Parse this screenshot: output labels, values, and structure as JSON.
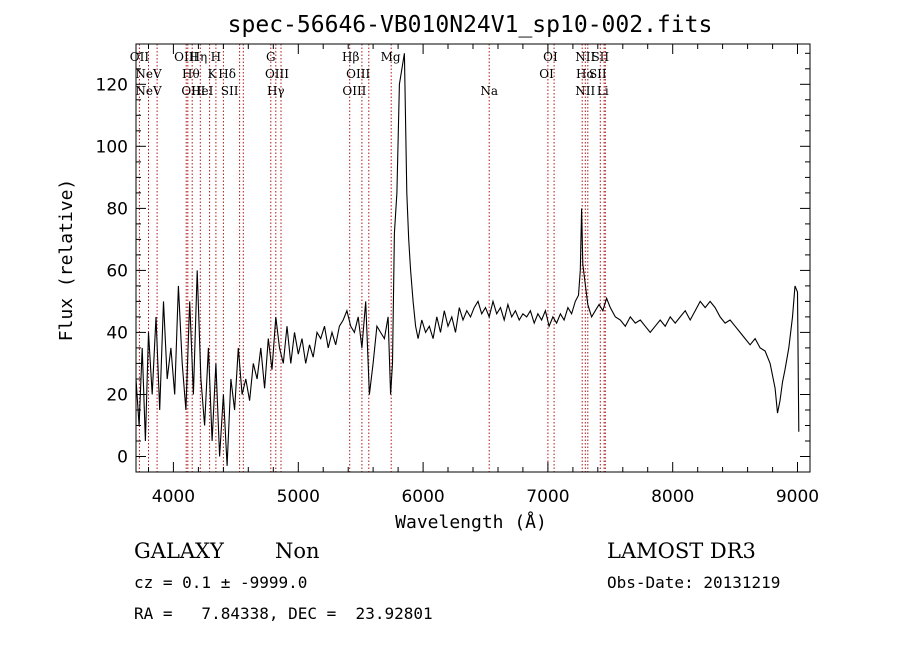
{
  "chart_data": {
    "type": "line",
    "title": "spec-56646-VB010N24V1_sp10-002.fits",
    "xlabel": "Wavelength (Å)",
    "ylabel": "Flux (relative)",
    "xlim": [
      3700,
      9100
    ],
    "ylim": [
      -5,
      133
    ],
    "xticks": [
      4000,
      5000,
      6000,
      7000,
      8000,
      9000
    ],
    "yticks": [
      0,
      20,
      40,
      60,
      80,
      100,
      120
    ],
    "grid": false,
    "series": [
      {
        "name": "spectrum",
        "x": [
          3700,
          3725,
          3750,
          3775,
          3800,
          3830,
          3860,
          3890,
          3920,
          3950,
          3980,
          4010,
          4040,
          4070,
          4100,
          4130,
          4160,
          4190,
          4220,
          4250,
          4280,
          4310,
          4340,
          4370,
          4400,
          4430,
          4460,
          4490,
          4520,
          4550,
          4580,
          4610,
          4640,
          4670,
          4700,
          4730,
          4760,
          4790,
          4820,
          4850,
          4880,
          4910,
          4940,
          4970,
          5000,
          5030,
          5060,
          5090,
          5120,
          5150,
          5180,
          5210,
          5240,
          5270,
          5300,
          5330,
          5360,
          5390,
          5420,
          5450,
          5480,
          5510,
          5540,
          5570,
          5600,
          5630,
          5660,
          5690,
          5720,
          5740,
          5755,
          5770,
          5790,
          5810,
          5830,
          5850,
          5870,
          5885,
          5900,
          5920,
          5940,
          5960,
          5990,
          6020,
          6050,
          6080,
          6110,
          6140,
          6170,
          6200,
          6230,
          6260,
          6290,
          6320,
          6350,
          6380,
          6410,
          6440,
          6470,
          6500,
          6530,
          6560,
          6590,
          6620,
          6650,
          6680,
          6710,
          6740,
          6770,
          6800,
          6830,
          6860,
          6890,
          6920,
          6950,
          6980,
          7010,
          7040,
          7070,
          7100,
          7130,
          7160,
          7190,
          7220,
          7245,
          7260,
          7270,
          7280,
          7295,
          7320,
          7350,
          7380,
          7410,
          7440,
          7470,
          7500,
          7540,
          7580,
          7620,
          7660,
          7700,
          7740,
          7780,
          7820,
          7860,
          7900,
          7940,
          7980,
          8020,
          8060,
          8100,
          8140,
          8180,
          8220,
          8260,
          8300,
          8340,
          8380,
          8420,
          8460,
          8500,
          8540,
          8580,
          8620,
          8660,
          8700,
          8740,
          8780,
          8820,
          8840,
          8860,
          8880,
          8900,
          8930,
          8960,
          8980,
          9000,
          9010
        ],
        "y": [
          25,
          10,
          35,
          5,
          40,
          20,
          45,
          15,
          50,
          25,
          35,
          20,
          55,
          30,
          15,
          50,
          20,
          60,
          25,
          10,
          35,
          5,
          30,
          0,
          20,
          -3,
          25,
          15,
          35,
          20,
          25,
          18,
          30,
          25,
          35,
          22,
          38,
          28,
          45,
          35,
          30,
          42,
          30,
          40,
          33,
          38,
          30,
          36,
          32,
          40,
          38,
          42,
          35,
          40,
          36,
          42,
          44,
          47,
          42,
          40,
          45,
          35,
          50,
          20,
          30,
          42,
          40,
          38,
          45,
          20,
          30,
          72,
          85,
          120,
          125,
          130,
          85,
          70,
          60,
          50,
          42,
          38,
          44,
          40,
          42,
          38,
          45,
          40,
          47,
          42,
          45,
          40,
          48,
          44,
          47,
          45,
          48,
          50,
          46,
          48,
          45,
          50,
          46,
          48,
          44,
          49,
          45,
          47,
          44,
          46,
          45,
          47,
          43,
          46,
          44,
          47,
          42,
          45,
          43,
          46,
          44,
          48,
          46,
          50,
          52,
          60,
          80,
          62,
          57,
          49,
          45,
          47,
          49,
          47,
          51,
          48,
          45,
          44,
          42,
          45,
          43,
          44,
          42,
          40,
          42,
          44,
          42,
          45,
          43,
          45,
          47,
          44,
          47,
          50,
          48,
          50,
          48,
          45,
          43,
          44,
          42,
          40,
          38,
          36,
          38,
          35,
          34,
          30,
          22,
          14,
          18,
          24,
          28,
          35,
          45,
          55,
          53,
          8
        ]
      }
    ],
    "line_markers": [
      {
        "wl": 3727,
        "label": "OII",
        "row": 0
      },
      {
        "wl": 3800,
        "label": "NeV",
        "row": 1
      },
      {
        "wl": 3800,
        "label": "NeV",
        "row": 2
      },
      {
        "wl": 4102,
        "label": "OIII",
        "row": 0
      },
      {
        "wl": 4140,
        "label": "Hθ",
        "row": 1
      },
      {
        "wl": 4160,
        "label": "OIII",
        "row": 2
      },
      {
        "wl": 4200,
        "label": "Hη",
        "row": 0
      },
      {
        "wl": 4230,
        "label": "HeI",
        "row": 2
      },
      {
        "wl": 4340,
        "label": "H",
        "row": 0
      },
      {
        "wl": 4310,
        "label": "K",
        "row": 1
      },
      {
        "wl": 4430,
        "label": "Hδ",
        "row": 1
      },
      {
        "wl": 4450,
        "label": "SII",
        "row": 2
      },
      {
        "wl": 4780,
        "label": "G",
        "row": 0
      },
      {
        "wl": 4830,
        "label": "OIII",
        "row": 1
      },
      {
        "wl": 4820,
        "label": "Hγ",
        "row": 2
      },
      {
        "wl": 5420,
        "label": "Hβ",
        "row": 0
      },
      {
        "wl": 5480,
        "label": "OIII",
        "row": 1
      },
      {
        "wl": 5450,
        "label": "OIII",
        "row": 2
      },
      {
        "wl": 5740,
        "label": "Mg",
        "row": 0
      },
      {
        "wl": 6530,
        "label": "Na",
        "row": 2
      },
      {
        "wl": 7020,
        "label": "OI",
        "row": 0
      },
      {
        "wl": 6990,
        "label": "OI",
        "row": 1
      },
      {
        "wl": 7300,
        "label": "NII",
        "row": 0
      },
      {
        "wl": 7300,
        "label": "Hα",
        "row": 1
      },
      {
        "wl": 7300,
        "label": "NII",
        "row": 2
      },
      {
        "wl": 7420,
        "label": "SII",
        "row": 0
      },
      {
        "wl": 7400,
        "label": "SII",
        "row": 1
      },
      {
        "wl": 7440,
        "label": "Li",
        "row": 2
      }
    ],
    "marker_wavelengths": [
      3727,
      3800,
      3869,
      4102,
      4115,
      4150,
      4215,
      4290,
      4340,
      4400,
      4530,
      4560,
      4780,
      4820,
      4862,
      5412,
      5510,
      5565,
      5745,
      6530,
      7000,
      7050,
      7275,
      7300,
      7320,
      7420,
      7450,
      7460
    ]
  },
  "footer": {
    "object_class": "GALAXY",
    "subclass": "Non",
    "survey": "LAMOST DR3",
    "redshift_text": "cz = 0.1 ± -9999.0",
    "obs_date_text": "Obs-Date: 20131219",
    "coords_text": "RA =   7.84338, DEC =  23.92801"
  }
}
